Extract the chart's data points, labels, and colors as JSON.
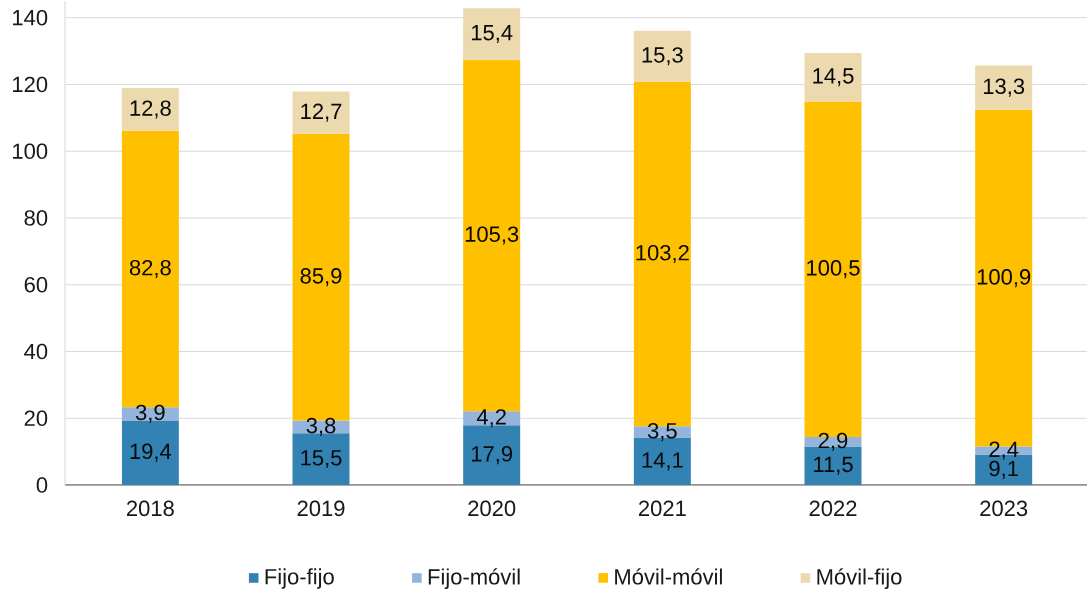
{
  "chart_data": {
    "type": "bar",
    "stacked": true,
    "categories": [
      "2018",
      "2019",
      "2020",
      "2021",
      "2022",
      "2023"
    ],
    "series": [
      {
        "name": "Fijo-fijo",
        "color": "#3282b4",
        "values": [
          19.4,
          15.5,
          17.9,
          14.1,
          11.5,
          9.1
        ],
        "value_labels": [
          "19,4",
          "15,5",
          "17,9",
          "14,1",
          "11,5",
          "9,1"
        ]
      },
      {
        "name": "Fijo-móvil",
        "color": "#94b4dc",
        "values": [
          3.9,
          3.8,
          4.2,
          3.5,
          2.9,
          2.4
        ],
        "value_labels": [
          "3,9",
          "3,8",
          "4,2",
          "3,5",
          "2,9",
          "2,4"
        ]
      },
      {
        "name": "Móvil-móvil",
        "color": "#ffc000",
        "values": [
          82.8,
          85.9,
          105.3,
          103.2,
          100.5,
          100.9
        ],
        "value_labels": [
          "82,8",
          "85,9",
          "105,3",
          "103,2",
          "100,5",
          "100,9"
        ]
      },
      {
        "name": "Móvil-fijo",
        "color": "#ecdaae",
        "values": [
          12.8,
          12.7,
          15.4,
          15.3,
          14.5,
          13.3
        ],
        "value_labels": [
          "12,8",
          "12,7",
          "15,4",
          "15,3",
          "14,5",
          "13,3"
        ]
      }
    ],
    "ylim": [
      0,
      145
    ],
    "yticks": [
      0,
      20,
      40,
      60,
      80,
      100,
      120,
      140
    ],
    "grid": "y",
    "legend": "bottom"
  }
}
